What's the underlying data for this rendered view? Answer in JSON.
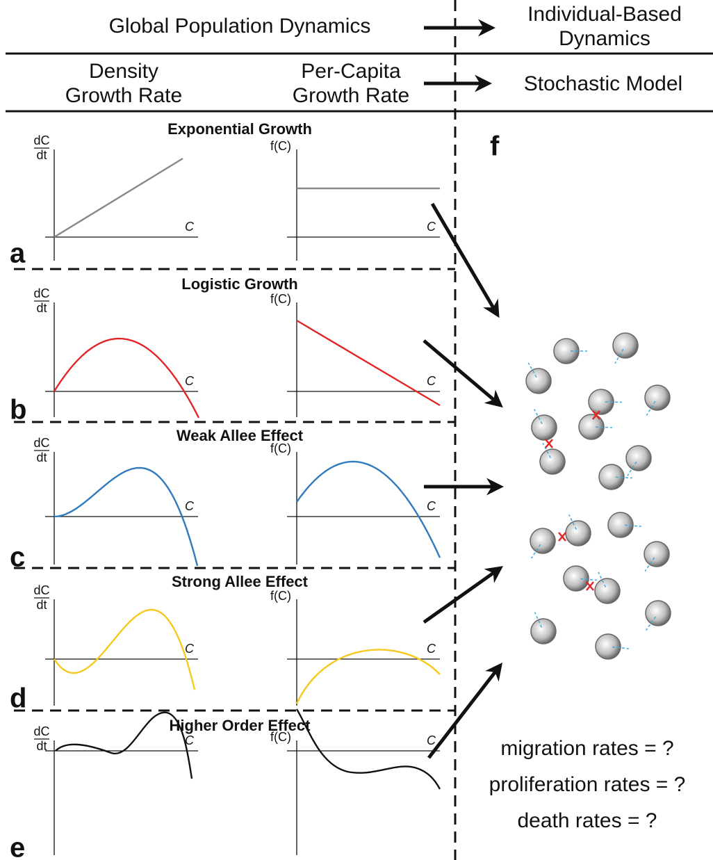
{
  "header": {
    "left": "Global Population Dynamics",
    "right": [
      "Individual-Based",
      "Dynamics"
    ]
  },
  "subheader": {
    "density": [
      "Density",
      "Growth Rate"
    ],
    "per_capita": [
      "Per-Capita",
      "Growth Rate"
    ],
    "model": "Stochastic Model"
  },
  "axis_labels": {
    "dc": "dC",
    "dt": "dt",
    "fc": "f(C)",
    "x": "C"
  },
  "panels": [
    {
      "letter": "a",
      "title": "Exponential Growth"
    },
    {
      "letter": "b",
      "title": "Logistic Growth"
    },
    {
      "letter": "c",
      "title": "Weak Allee Effect"
    },
    {
      "letter": "d",
      "title": "Strong Allee Effect"
    },
    {
      "letter": "e",
      "title": "Higher Order Effect"
    }
  ],
  "model_panel": {
    "letter": "f",
    "questions": [
      "migration rates = ?",
      "proliferation rates = ?",
      "death rates = ?"
    ]
  }
}
